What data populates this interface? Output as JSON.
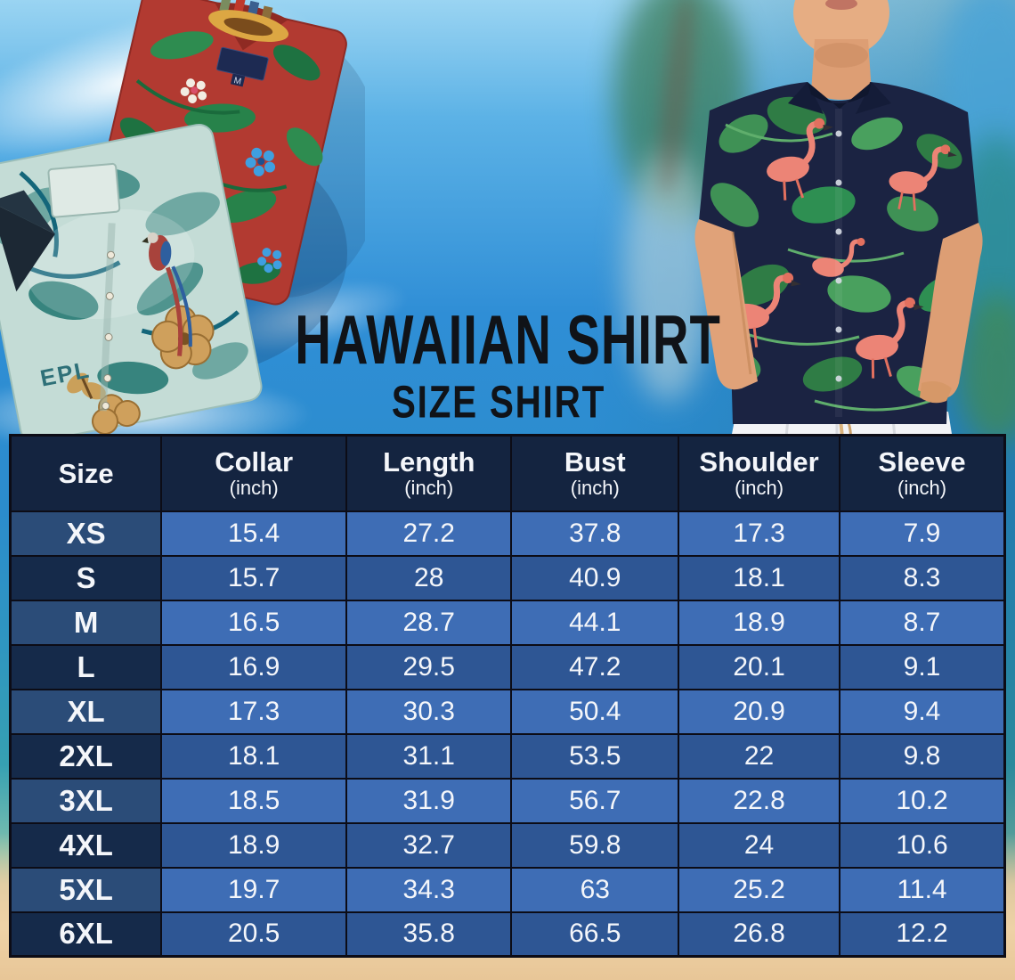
{
  "title": "HAWAIIAN SHIRT",
  "subtitle": "SIZE SHIRT",
  "chart_data": {
    "type": "table",
    "columns": [
      {
        "label": "Size",
        "unit": ""
      },
      {
        "label": "Collar",
        "unit": "(inch)"
      },
      {
        "label": "Length",
        "unit": "(inch)"
      },
      {
        "label": "Bust",
        "unit": "(inch)"
      },
      {
        "label": "Shoulder",
        "unit": "(inch)"
      },
      {
        "label": "Sleeve",
        "unit": "(inch)"
      }
    ],
    "rows": [
      {
        "size": "XS",
        "values": [
          "15.4",
          "27.2",
          "37.8",
          "17.3",
          "7.9"
        ]
      },
      {
        "size": "S",
        "values": [
          "15.7",
          "28",
          "40.9",
          "18.1",
          "8.3"
        ]
      },
      {
        "size": "M",
        "values": [
          "16.5",
          "28.7",
          "44.1",
          "18.9",
          "8.7"
        ]
      },
      {
        "size": "L",
        "values": [
          "16.9",
          "29.5",
          "47.2",
          "20.1",
          "9.1"
        ]
      },
      {
        "size": "XL",
        "values": [
          "17.3",
          "30.3",
          "50.4",
          "20.9",
          "9.4"
        ]
      },
      {
        "size": "2XL",
        "values": [
          "18.1",
          "31.1",
          "53.5",
          "22",
          "9.8"
        ]
      },
      {
        "size": "3XL",
        "values": [
          "18.5",
          "31.9",
          "56.7",
          "22.8",
          "10.2"
        ]
      },
      {
        "size": "4XL",
        "values": [
          "18.9",
          "32.7",
          "59.8",
          "24",
          "10.6"
        ]
      },
      {
        "size": "5XL",
        "values": [
          "19.7",
          "34.3",
          "63",
          "25.2",
          "11.4"
        ]
      },
      {
        "size": "6XL",
        "values": [
          "20.5",
          "35.8",
          "66.5",
          "26.8",
          "12.2"
        ]
      }
    ]
  },
  "photos": {
    "left": {
      "name": "folded-hawaiian-shirts-photo",
      "collar_tag": "M",
      "print_text": "EPL"
    },
    "right": {
      "name": "man-in-flamingo-hawaiian-shirt-photo"
    }
  },
  "colors": {
    "header_bg": "#142440",
    "size_cell_light": "#2b4c78",
    "size_cell_dark": "#152a4a",
    "value_cell_light": "#3e6db5",
    "value_cell_dark": "#2e5694",
    "table_border": "#0c0c16",
    "table_text": "#f4f6fa",
    "title_text": "#101318",
    "sky_blue": "#2f8ed6",
    "sand": "#eccfa2"
  }
}
